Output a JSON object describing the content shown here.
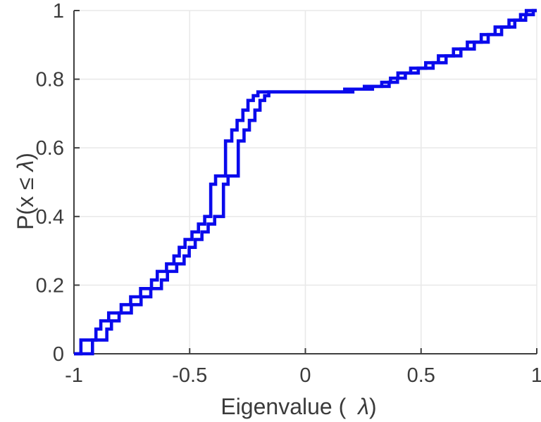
{
  "figure": {
    "xlabel": {
      "prefix": "Eigenvalue (",
      "lambda": "λ",
      "suffix": ")"
    },
    "ylabel": {
      "prefix": "P(x ≤",
      "lambda": "λ",
      "suffix": ")"
    }
  },
  "chart_data": {
    "type": "line",
    "subtype": "empirical-cdf-stairs",
    "title": "",
    "xlabel": "Eigenvalue (λ)",
    "ylabel": "P(x ≤ λ)",
    "xlim": [
      -1,
      1
    ],
    "ylim": [
      0,
      1
    ],
    "grid": true,
    "legend": null,
    "colors": {
      "line": "#0a0aec",
      "axis": "#3f3f3f",
      "grid": "#e9e9e9",
      "tick_label": "#3b3b3b",
      "background": "#ffffff"
    },
    "x_ticks": [
      {
        "value": -1,
        "label": "-1"
      },
      {
        "value": -0.5,
        "label": "-0.5"
      },
      {
        "value": 0,
        "label": "0"
      },
      {
        "value": 0.5,
        "label": "0.5"
      },
      {
        "value": 1,
        "label": "1"
      }
    ],
    "y_ticks": [
      {
        "value": 0,
        "label": "0"
      },
      {
        "value": 0.2,
        "label": "0.2"
      },
      {
        "value": 0.4,
        "label": "0.4"
      },
      {
        "value": 0.6,
        "label": "0.6"
      },
      {
        "value": 0.8,
        "label": "0.8"
      },
      {
        "value": 1,
        "label": "1"
      }
    ],
    "series": [
      {
        "name": "ecdf-curve-1",
        "start": [
          -1,
          0
        ],
        "jumps": [
          [
            -0.97,
            0.04
          ],
          [
            -0.905,
            0.072
          ],
          [
            -0.884,
            0.096
          ],
          [
            -0.85,
            0.119
          ],
          [
            -0.796,
            0.143
          ],
          [
            -0.755,
            0.166
          ],
          [
            -0.712,
            0.19
          ],
          [
            -0.665,
            0.215
          ],
          [
            -0.64,
            0.24
          ],
          [
            -0.6,
            0.262
          ],
          [
            -0.568,
            0.285
          ],
          [
            -0.545,
            0.31
          ],
          [
            -0.52,
            0.333
          ],
          [
            -0.49,
            0.355
          ],
          [
            -0.462,
            0.378
          ],
          [
            -0.435,
            0.4
          ],
          [
            -0.409,
            0.494
          ],
          [
            -0.388,
            0.518
          ],
          [
            -0.345,
            0.62
          ],
          [
            -0.318,
            0.652
          ],
          [
            -0.295,
            0.68
          ],
          [
            -0.27,
            0.71
          ],
          [
            -0.248,
            0.738
          ],
          [
            -0.225,
            0.752
          ],
          [
            -0.205,
            0.763
          ],
          [
            0.17,
            0.771
          ],
          [
            0.255,
            0.779
          ],
          [
            0.33,
            0.791
          ],
          [
            0.368,
            0.803
          ],
          [
            0.4,
            0.818
          ],
          [
            0.455,
            0.832
          ],
          [
            0.52,
            0.848
          ],
          [
            0.575,
            0.868
          ],
          [
            0.64,
            0.888
          ],
          [
            0.7,
            0.908
          ],
          [
            0.76,
            0.93
          ],
          [
            0.82,
            0.952
          ],
          [
            0.88,
            0.972
          ],
          [
            0.93,
            0.988
          ],
          [
            0.955,
            1.0
          ]
        ]
      },
      {
        "name": "ecdf-curve-2",
        "start": [
          -1,
          0
        ],
        "jumps": [
          [
            -0.92,
            0.04
          ],
          [
            -0.858,
            0.072
          ],
          [
            -0.838,
            0.096
          ],
          [
            -0.805,
            0.119
          ],
          [
            -0.752,
            0.143
          ],
          [
            -0.71,
            0.166
          ],
          [
            -0.668,
            0.19
          ],
          [
            -0.622,
            0.215
          ],
          [
            -0.596,
            0.24
          ],
          [
            -0.556,
            0.262
          ],
          [
            -0.524,
            0.285
          ],
          [
            -0.502,
            0.31
          ],
          [
            -0.476,
            0.333
          ],
          [
            -0.447,
            0.355
          ],
          [
            -0.42,
            0.378
          ],
          [
            -0.392,
            0.4
          ],
          [
            -0.354,
            0.494
          ],
          [
            -0.334,
            0.518
          ],
          [
            -0.29,
            0.62
          ],
          [
            -0.265,
            0.652
          ],
          [
            -0.242,
            0.68
          ],
          [
            -0.218,
            0.71
          ],
          [
            -0.196,
            0.738
          ],
          [
            -0.176,
            0.752
          ],
          [
            -0.158,
            0.763
          ],
          [
            0.205,
            0.771
          ],
          [
            0.29,
            0.779
          ],
          [
            0.362,
            0.791
          ],
          [
            0.398,
            0.803
          ],
          [
            0.432,
            0.818
          ],
          [
            0.488,
            0.832
          ],
          [
            0.552,
            0.848
          ],
          [
            0.608,
            0.868
          ],
          [
            0.672,
            0.888
          ],
          [
            0.73,
            0.908
          ],
          [
            0.79,
            0.93
          ],
          [
            0.848,
            0.952
          ],
          [
            0.905,
            0.972
          ],
          [
            0.952,
            0.988
          ],
          [
            0.985,
            1.0
          ]
        ]
      }
    ]
  }
}
